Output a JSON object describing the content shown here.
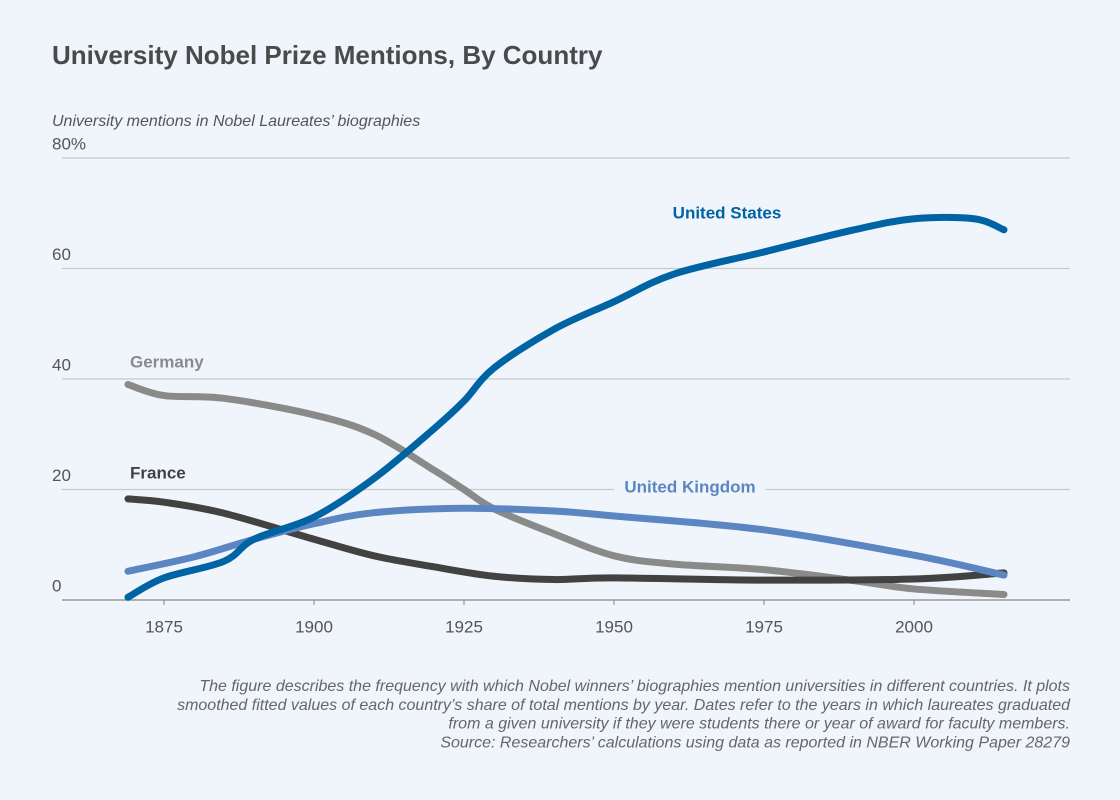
{
  "chart_data": {
    "type": "line",
    "title": "University Nobel Prize Mentions, By Country",
    "y_label": "University mentions in Nobel Laureates’ biographies",
    "notes": [
      "The figure describes the frequency with which Nobel winners’ biographies mention universities in different countries. It plots",
      "smoothed fitted values of each country’s share of total mentions by year. Dates refer to the years in which laureates graduated",
      "from a given university if they were students there or year of award for faculty members.",
      "Source: Researchers’ calculations using data as reported in NBER Working Paper 28279"
    ],
    "xlim": [
      1858,
      2026
    ],
    "xticks": [
      1875,
      1900,
      1925,
      1950,
      1975,
      2000
    ],
    "ylim": [
      0,
      80
    ],
    "yticks": [
      0,
      20,
      40,
      60,
      {
        "value": 80,
        "label": "80%"
      }
    ],
    "grid": true,
    "series": [
      {
        "name": "United States",
        "color": "#0063a3",
        "x": [
          1869,
          1875,
          1885,
          1890,
          1900,
          1910,
          1920,
          1925,
          1930,
          1940,
          1950,
          1960,
          1975,
          1990,
          2000,
          2010,
          2015
        ],
        "values": [
          0.5,
          4,
          7,
          11,
          15,
          22,
          31,
          36,
          42,
          49,
          54,
          59,
          63,
          67,
          69,
          69,
          67
        ]
      },
      {
        "name": "Germany",
        "color": "#8a8a8a",
        "x": [
          1869,
          1875,
          1885,
          1900,
          1910,
          1920,
          1925,
          1930,
          1940,
          1950,
          1960,
          1975,
          1990,
          2000,
          2015
        ],
        "values": [
          39,
          37,
          36.5,
          33.5,
          30,
          23.5,
          20,
          16.5,
          12,
          8,
          6.5,
          5.5,
          3.5,
          2,
          1
        ]
      },
      {
        "name": "France",
        "color": "#424242",
        "x": [
          1869,
          1875,
          1885,
          1900,
          1910,
          1920,
          1930,
          1940,
          1950,
          1975,
          2000,
          2015
        ],
        "values": [
          18.3,
          17.7,
          15.7,
          11,
          8,
          6,
          4.3,
          3.7,
          4,
          3.6,
          3.8,
          4.9
        ]
      },
      {
        "name": "United Kingdom",
        "color": "#5b86c2",
        "x": [
          1869,
          1880,
          1890,
          1900,
          1910,
          1925,
          1940,
          1950,
          1975,
          2000,
          2015
        ],
        "values": [
          5.2,
          7.8,
          11,
          13.8,
          15.8,
          16.6,
          16.1,
          15.2,
          12.7,
          8.1,
          4.5
        ]
      }
    ]
  }
}
